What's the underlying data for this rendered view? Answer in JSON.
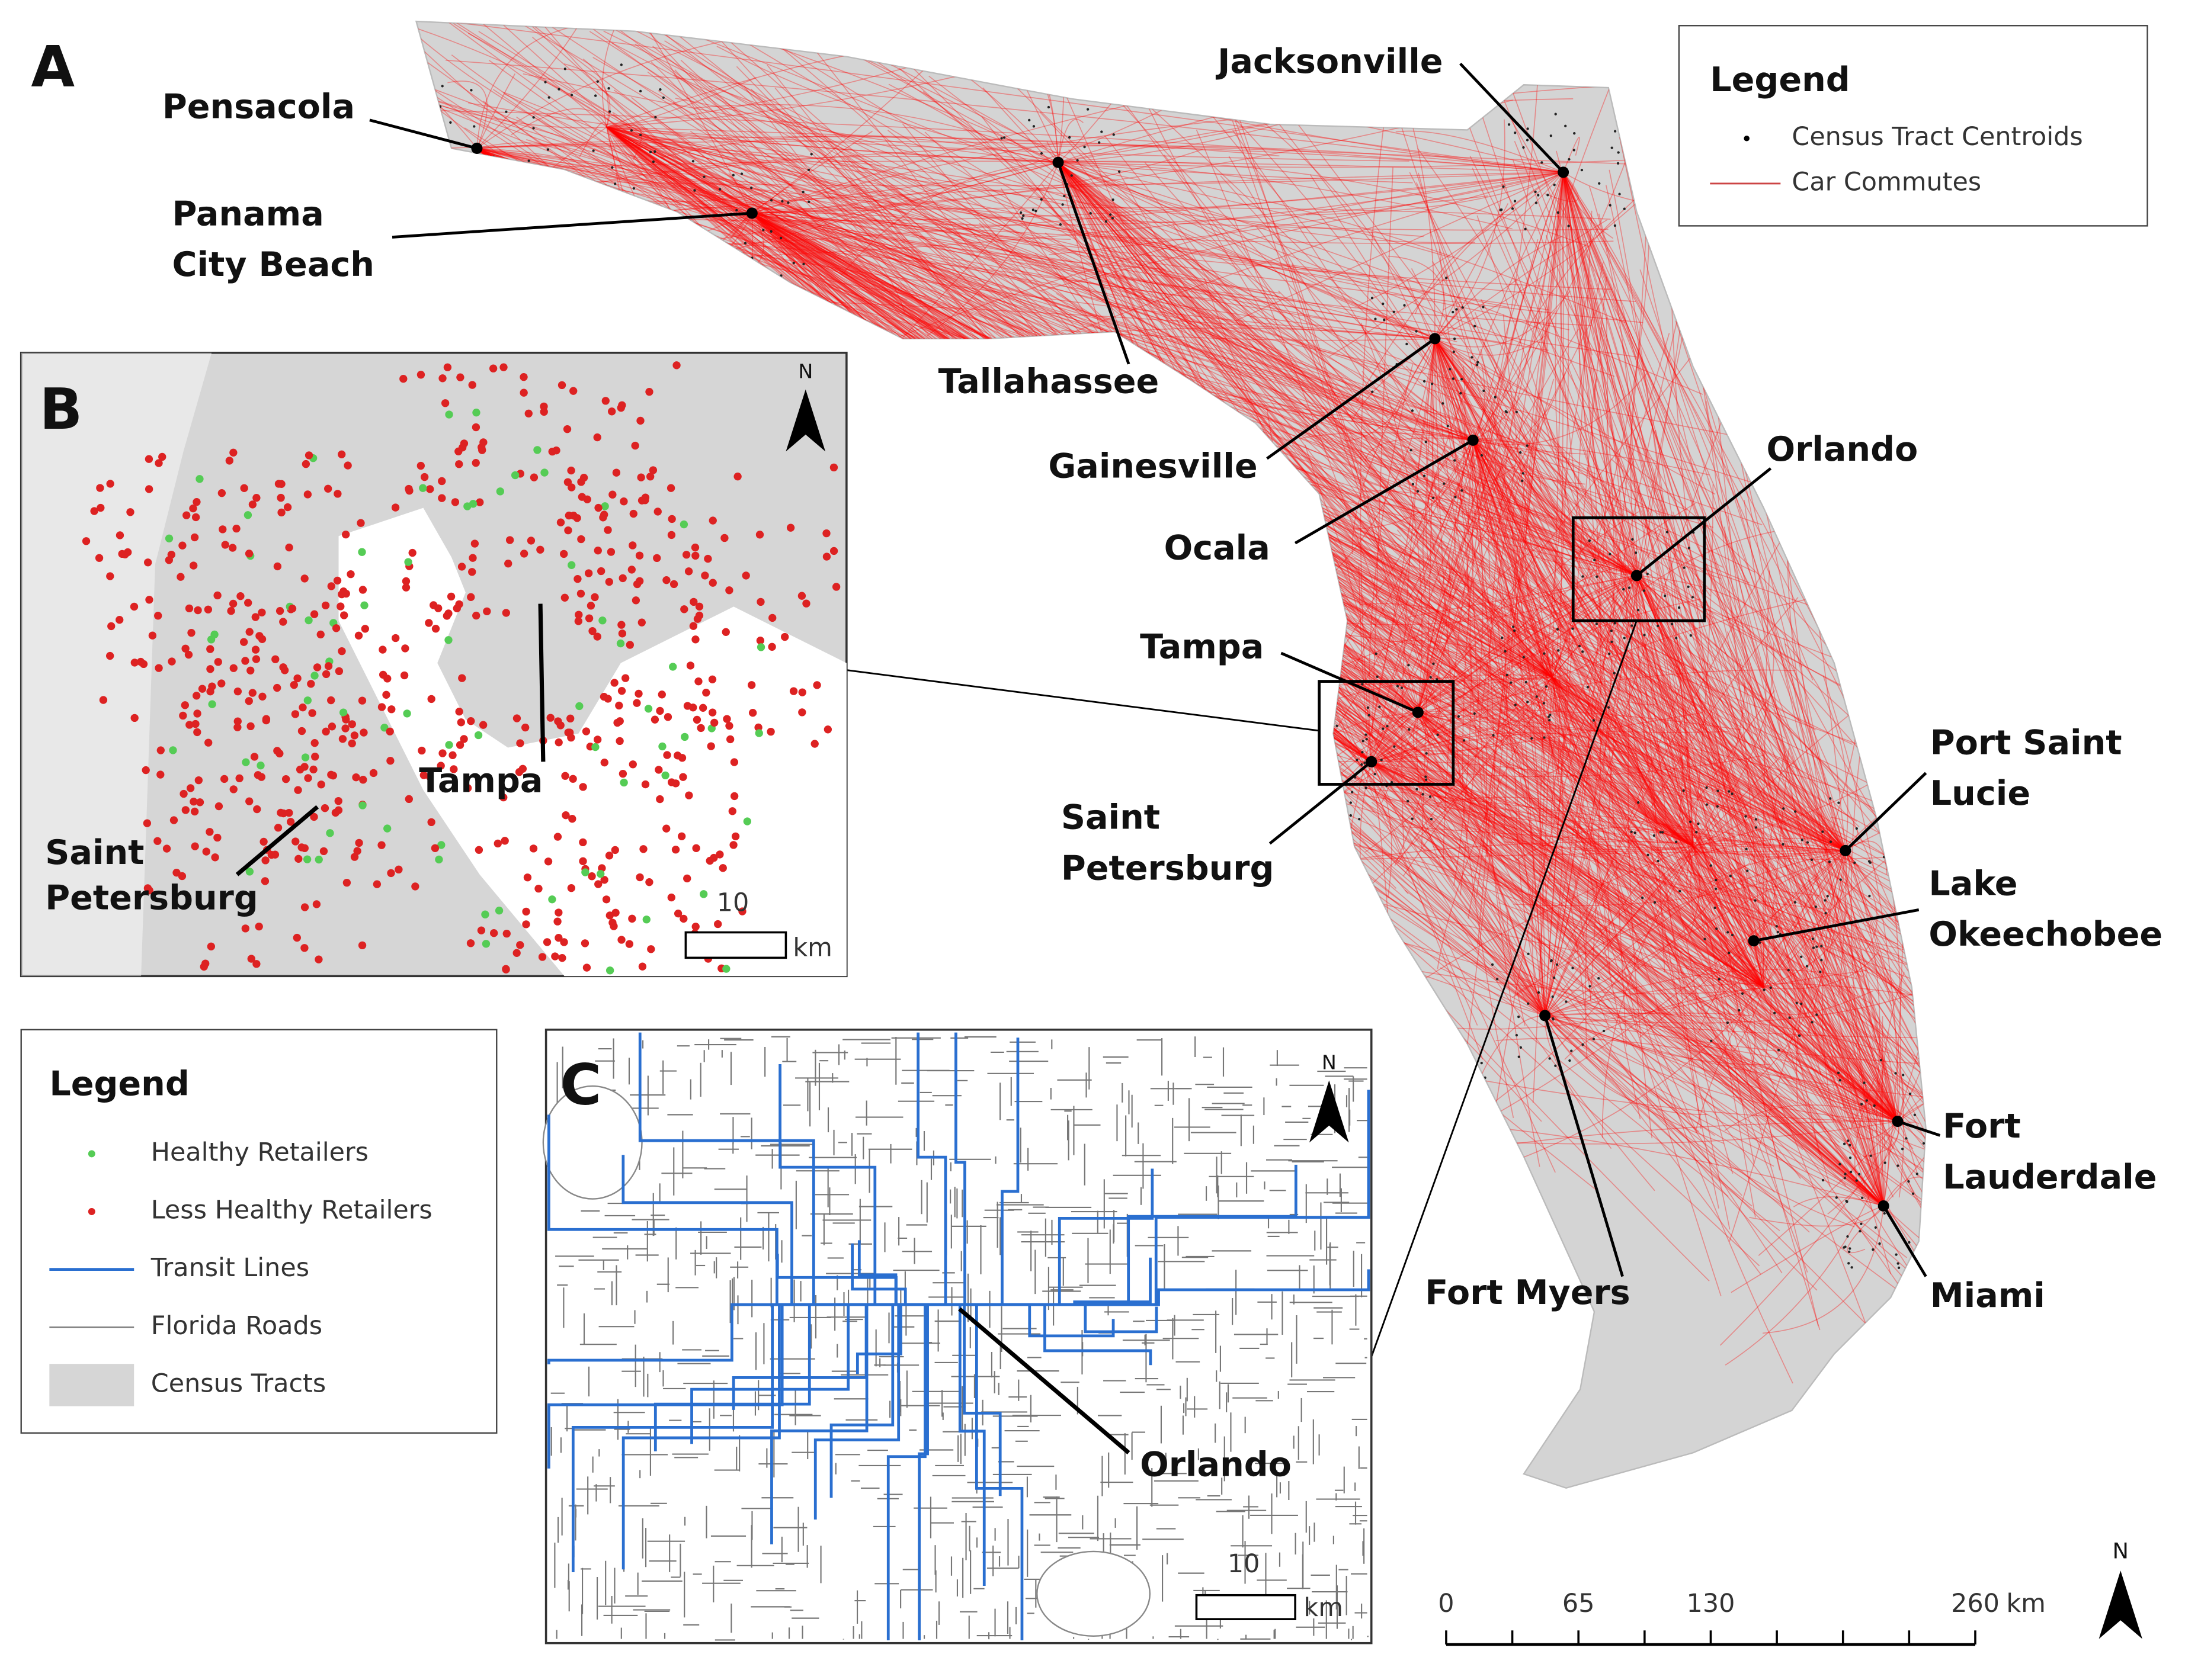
{
  "panels": {
    "a": "A",
    "b": "B",
    "c": "C"
  },
  "map_a": {
    "cities": [
      {
        "lines": [
          "Pensacola"
        ]
      },
      {
        "lines": [
          "Panama",
          "City Beach"
        ]
      },
      {
        "lines": [
          "Tallahassee"
        ]
      },
      {
        "lines": [
          "Jacksonville"
        ]
      },
      {
        "lines": [
          "Gainesville"
        ]
      },
      {
        "lines": [
          "Ocala"
        ]
      },
      {
        "lines": [
          "Orlando"
        ]
      },
      {
        "lines": [
          "Tampa"
        ]
      },
      {
        "lines": [
          "Saint",
          "Petersburg"
        ]
      },
      {
        "lines": [
          "Port Saint",
          "Lucie"
        ]
      },
      {
        "lines": [
          "Lake",
          "Okeechobee"
        ]
      },
      {
        "lines": [
          "Fort",
          "Lauderdale"
        ]
      },
      {
        "lines": [
          "Miami"
        ]
      },
      {
        "lines": [
          "Fort Myers"
        ]
      }
    ],
    "legend": {
      "title": "Legend",
      "items": [
        "Census Tract Centroids",
        "Car Commutes"
      ]
    },
    "scale": {
      "ticks": [
        0,
        65,
        130,
        260
      ],
      "unit": "km"
    },
    "north": "N"
  },
  "map_b": {
    "labels": [
      {
        "lines": [
          "Tampa"
        ]
      },
      {
        "lines": [
          "Saint",
          "Petersburg"
        ]
      }
    ],
    "scale": "10",
    "unit": "km",
    "north": "N"
  },
  "map_c": {
    "label": "Orlando",
    "scale": "10",
    "unit": "km",
    "north": "N"
  },
  "legend_bc": {
    "title": "Legend",
    "items": [
      "Healthy Retailers",
      "Less Healthy Retailers",
      "Transit Lines",
      "Florida Roads",
      "Census Tracts"
    ]
  }
}
